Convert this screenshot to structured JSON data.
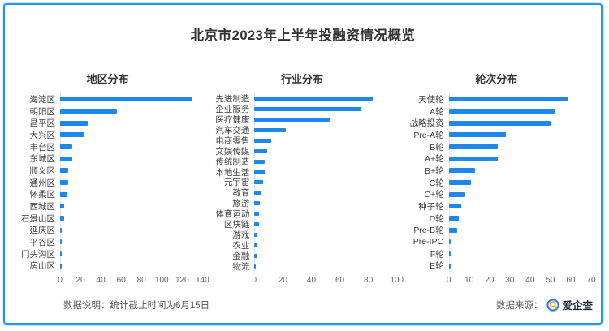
{
  "title": "北京市2023年上半年投融资情况概览",
  "colors": {
    "bar": "#1e87ec",
    "card_border": "#2196f3",
    "card_border_glow": "#d5ecfc",
    "title_text": "#333333",
    "label_text": "#3d3d3d",
    "tick_text": "#5f5f5f",
    "footer_text": "#555555",
    "brand_text": "#16293f",
    "logo_blue": "#2478f2",
    "logo_orange": "#ff9a1e"
  },
  "footer": {
    "note": "数据说明：统计截止时间为6月15日",
    "source_label": "数据来源：",
    "source_brand": "爱企查"
  },
  "chart_data": [
    {
      "type": "bar",
      "orientation": "horizontal",
      "title": "地区分布",
      "categories": [
        "海淀区",
        "朝阳区",
        "昌平区",
        "大兴区",
        "丰台区",
        "东城区",
        "顺义区",
        "通州区",
        "怀柔区",
        "西城区",
        "石景山区",
        "延庆区",
        "平谷区",
        "门头沟区",
        "房山区"
      ],
      "values": [
        129,
        56,
        27,
        24,
        12,
        12,
        8,
        8,
        7,
        4,
        4,
        1,
        1,
        1,
        1
      ],
      "xlim": [
        0,
        140
      ],
      "xticks": [
        0,
        20,
        40,
        60,
        80,
        100,
        120,
        140
      ],
      "grid": false,
      "legend": false
    },
    {
      "type": "bar",
      "orientation": "horizontal",
      "title": "行业分布",
      "categories": [
        "先进制造",
        "企业服务",
        "医疗健康",
        "汽车交通",
        "电商零售",
        "文娱传媒",
        "传统制造",
        "本地生活",
        "元宇宙",
        "教育",
        "旅游",
        "体育运动",
        "区块链",
        "游戏",
        "农业",
        "金融",
        "物流"
      ],
      "values": [
        83,
        75,
        53,
        22,
        12,
        9,
        7,
        7,
        6,
        5,
        4,
        3,
        3,
        2,
        2,
        2,
        1
      ],
      "xlim": [
        0,
        100
      ],
      "xticks": [
        0,
        20,
        40,
        60,
        80,
        100
      ],
      "grid": false,
      "legend": false
    },
    {
      "type": "bar",
      "orientation": "horizontal",
      "title": "轮次分布",
      "categories": [
        "天使轮",
        "A轮",
        "战略投资",
        "Pre-A轮",
        "B轮",
        "A+轮",
        "B+轮",
        "C轮",
        "C+轮",
        "种子轮",
        "D轮",
        "Pre-B轮",
        "Pre-IPO",
        "F轮",
        "E轮"
      ],
      "values": [
        59,
        52,
        50,
        28,
        24,
        24,
        13,
        11,
        8,
        6,
        5,
        4,
        1,
        1,
        1
      ],
      "xlim": [
        0,
        70
      ],
      "xticks": [
        0,
        10,
        20,
        30,
        40,
        50,
        60,
        70
      ],
      "grid": false,
      "legend": false
    }
  ]
}
